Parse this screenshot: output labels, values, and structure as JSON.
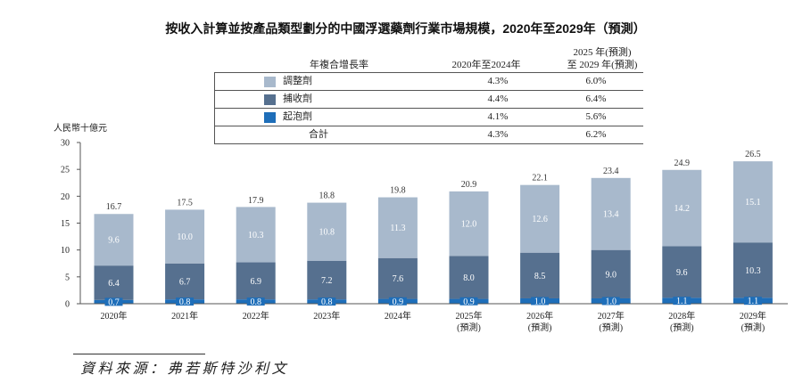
{
  "chart_data": {
    "type": "bar",
    "stacked": true,
    "title": "按收入計算並按產品類型劃分的中國浮選藥劑行業市場規模，2020年至2029年（預測）",
    "ylabel": "人民幣十億元",
    "ylim": [
      0,
      30
    ],
    "yticks": [
      0,
      5,
      10,
      15,
      20,
      25,
      30
    ],
    "categories": [
      [
        "2020年"
      ],
      [
        "2021年"
      ],
      [
        "2022年"
      ],
      [
        "2023年"
      ],
      [
        "2024年"
      ],
      [
        "2025年",
        "(預測)"
      ],
      [
        "2026年",
        "(預測)"
      ],
      [
        "2027年",
        "(預測)"
      ],
      [
        "2028年",
        "(預測)"
      ],
      [
        "2029年",
        "(預測)"
      ]
    ],
    "series": [
      {
        "name": "調整劑",
        "color": "#a8b9cc",
        "values": [
          9.6,
          10.0,
          10.3,
          10.8,
          11.3,
          12.0,
          12.6,
          13.4,
          14.2,
          15.1
        ],
        "cagr": [
          "4.3%",
          "6.0%"
        ]
      },
      {
        "name": "捕收劑",
        "color": "#56708f",
        "values": [
          6.4,
          6.7,
          6.9,
          7.2,
          7.6,
          8.0,
          8.5,
          9.0,
          9.6,
          10.3
        ],
        "cagr": [
          "4.4%",
          "6.4%"
        ]
      },
      {
        "name": "起泡劑",
        "color": "#1e6eb9",
        "values": [
          0.7,
          0.8,
          0.8,
          0.8,
          0.9,
          0.9,
          1.0,
          1.0,
          1.1,
          1.1
        ],
        "cagr": [
          "4.1%",
          "5.6%"
        ]
      }
    ],
    "totals": [
      16.7,
      17.5,
      17.9,
      18.8,
      19.8,
      20.9,
      22.1,
      23.4,
      24.9,
      26.5
    ]
  },
  "cagr_table": {
    "header": "年複合增長率",
    "period_1": "2020年至2024年",
    "period_2": [
      "2025 年(預測)",
      "至 2029 年(預測)"
    ],
    "total_label": "合計",
    "total_cagr": [
      "4.3%",
      "6.2%"
    ]
  },
  "source": "資料來源：弗若斯特沙利文"
}
